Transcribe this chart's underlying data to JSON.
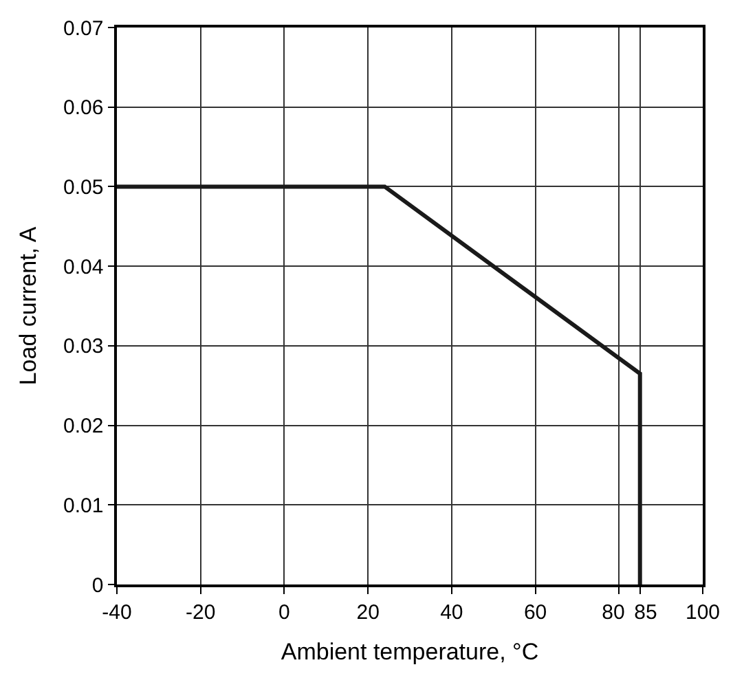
{
  "chart_data": {
    "type": "line",
    "xlabel": "Ambient temperature, °C",
    "ylabel": "Load current, A",
    "x": [
      -40,
      24,
      85,
      85
    ],
    "series": [
      {
        "color": "#1a1a1a",
        "values": [
          0.05,
          0.05,
          0.0265,
          0
        ]
      }
    ],
    "xlim": [
      -40,
      100
    ],
    "xticks": [
      -40,
      -20,
      0,
      20,
      40,
      60,
      80,
      85,
      100
    ],
    "ylim": [
      0,
      0.07
    ],
    "yticks": [
      0,
      0.01,
      0.02,
      0.03,
      0.04,
      0.05,
      0.06,
      0.07
    ],
    "grid": true,
    "marker": "none",
    "line_style": "solid",
    "legend": false
  }
}
